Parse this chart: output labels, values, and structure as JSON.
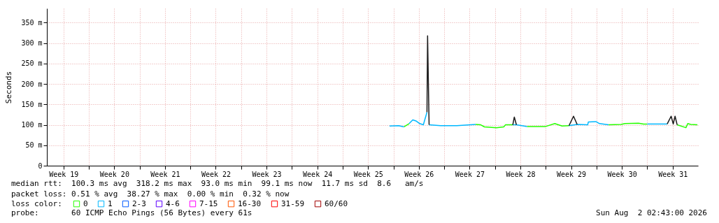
{
  "chart_data": {
    "type": "line",
    "ylabel": "Seconds",
    "legend_title": "loss color:",
    "legend": "bottom",
    "grid": true,
    "marker": "none",
    "line_style": "solid",
    "xlim": [
      "2026-05-05T05:00",
      "2026-08-03T00:00"
    ],
    "xticks": [
      {
        "value": "2026-05-07T12:00",
        "label": "Week 19"
      },
      {
        "value": "2026-05-11T00:00",
        "label": null
      },
      {
        "value": "2026-05-14T12:00",
        "label": "Week 20"
      },
      {
        "value": "2026-05-18T00:00",
        "label": null
      },
      {
        "value": "2026-05-21T12:00",
        "label": "Week 21"
      },
      {
        "value": "2026-05-25T00:00",
        "label": null
      },
      {
        "value": "2026-05-28T12:00",
        "label": "Week 22"
      },
      {
        "value": "2026-06-01T00:00",
        "label": null
      },
      {
        "value": "2026-06-04T12:00",
        "label": "Week 23"
      },
      {
        "value": "2026-06-08T00:00",
        "label": null
      },
      {
        "value": "2026-06-11T12:00",
        "label": "Week 24"
      },
      {
        "value": "2026-06-15T00:00",
        "label": null
      },
      {
        "value": "2026-06-18T12:00",
        "label": "Week 25"
      },
      {
        "value": "2026-06-22T00:00",
        "label": null
      },
      {
        "value": "2026-06-25T12:00",
        "label": "Week 26"
      },
      {
        "value": "2026-06-29T00:00",
        "label": null
      },
      {
        "value": "2026-07-02T12:00",
        "label": "Week 27"
      },
      {
        "value": "2026-07-06T00:00",
        "label": null
      },
      {
        "value": "2026-07-09T12:00",
        "label": "Week 28"
      },
      {
        "value": "2026-07-13T00:00",
        "label": null
      },
      {
        "value": "2026-07-16T12:00",
        "label": "Week 29"
      },
      {
        "value": "2026-07-20T00:00",
        "label": null
      },
      {
        "value": "2026-07-23T12:00",
        "label": "Week 30"
      },
      {
        "value": "2026-07-27T00:00",
        "label": null
      },
      {
        "value": "2026-07-30T12:00",
        "label": "Week 31"
      }
    ],
    "ylim": [
      0,
      385
    ],
    "yticks": [
      0,
      {
        "value": 50,
        "label": "50 m"
      },
      {
        "value": 100,
        "label": "100 m"
      },
      {
        "value": 150,
        "label": "150 m"
      },
      {
        "value": 200,
        "label": "200 m"
      },
      {
        "value": 250,
        "label": "250 m"
      },
      {
        "value": 300,
        "label": "300 m"
      },
      {
        "value": 350,
        "label": "350 m"
      }
    ],
    "series": [
      {
        "name": "0",
        "color": "#26ff00",
        "x": [
          "2026-06-23T11:00",
          "2026-06-24T04:00",
          "2026-06-29T00:00",
          "2026-07-03T08:00",
          "2026-07-04T01:00",
          "2026-07-04T13:00",
          "2026-07-06T05:00",
          "2026-07-07T05:00",
          "2026-07-07T11:00",
          "2026-07-08T11:00",
          "2026-07-09T12:00",
          "2026-07-10T10:00",
          "2026-07-13T00:00",
          "2026-07-14T06:00",
          "2026-07-15T06:00",
          "2026-07-16T05:00",
          "2026-07-19T07:00",
          "2026-07-21T16:00",
          "2026-07-23T09:00",
          "2026-07-23T22:00",
          "2026-07-25T19:00",
          "2026-07-26T12:00",
          "2026-07-27T00:00",
          "2026-07-29T02:00",
          "2026-07-31T03:00",
          "2026-08-01T08:00",
          "2026-08-01T14:00",
          "2026-08-02T00:00",
          "2026-08-02T22:00"
        ],
        "values": [
          95,
          103,
          null,
          101,
          100,
          95,
          93,
          95,
          100,
          100,
          null,
          96,
          96,
          103,
          97,
          98,
          null,
          100,
          101,
          103,
          104,
          102,
          102,
          null,
          100,
          93,
          103,
          101,
          100
        ]
      },
      {
        "name": "1",
        "color": "#00b8ff",
        "x": [
          "2026-06-21T11:00",
          "2026-06-22T17:00",
          "2026-06-23T11:00",
          "2026-06-23T20:00",
          "2026-06-24T04:00",
          "2026-06-24T16:00",
          "2026-06-25T04:00",
          "2026-06-25T15:00",
          "2026-06-26T03:00",
          "2026-06-26T15:00",
          "2026-06-26T18:00",
          "2026-06-26T22:00",
          "2026-06-28T12:00",
          "2026-06-30T18:00",
          "2026-07-03T08:00",
          "2026-07-06T00:00",
          "2026-07-08T11:00",
          "2026-07-08T23:00",
          "2026-07-10T10:00",
          "2026-07-13T00:00",
          "2026-07-16T05:00",
          "2026-07-17T08:00",
          "2026-07-18T19:00",
          "2026-07-18T21:00",
          "2026-07-19T22:00",
          "2026-07-20T10:00",
          "2026-07-21T16:00",
          "2026-07-24T05:00",
          "2026-07-27T00:00",
          "2026-07-29T18:00"
        ],
        "values": [
          97,
          98,
          95,
          null,
          103,
          112,
          109,
          103,
          100,
          131,
          null,
          100,
          98,
          98,
          101,
          null,
          100,
          100,
          96,
          null,
          98,
          101,
          100,
          107,
          108,
          103,
          100,
          null,
          102,
          102
        ]
      },
      {
        "name": "2-3",
        "color": "#0059ff"
      },
      {
        "name": "4-6",
        "color": "#5e00ff"
      },
      {
        "name": "7-15",
        "color": "#ff00fe"
      },
      {
        "name": "16-30",
        "color": "#ff5500"
      },
      {
        "name": "31-59",
        "color": "#ff0000"
      },
      {
        "name": "60/60",
        "color": "#a10000"
      },
      {
        "color": "#1a1a1a",
        "x": [
          "2026-06-26T15:00",
          "2026-06-26T17:00",
          "2026-06-26T22:00",
          "2026-06-29T00:00",
          "2026-07-08T11:00",
          "2026-07-08T16:00",
          "2026-07-08T23:00",
          "2026-07-13T00:00",
          "2026-07-16T05:00",
          "2026-07-16T20:00",
          "2026-07-17T08:00",
          "2026-07-20T00:00",
          "2026-07-29T18:00",
          "2026-07-30T07:00",
          "2026-07-30T14:00",
          "2026-07-30T20:00",
          "2026-07-31T03:00"
        ],
        "values": [
          131,
          318,
          100,
          null,
          100,
          119,
          100,
          null,
          98,
          121,
          101,
          null,
          102,
          121,
          102,
          121,
          100
        ]
      }
    ],
    "annotations": [
      "median rtt:  100.3 ms avg  318.2 ms max  93.0 ms min  99.1 ms now  11.7 ms sd  8.6   am/s",
      "packet loss: 0.51 % avg  38.27 % max  0.00 % min  0.32 % now",
      "probe:       60 ICMP Echo Pings (56 Bytes) every 61s",
      "Sun Aug  2 02:43:00 2026"
    ]
  }
}
